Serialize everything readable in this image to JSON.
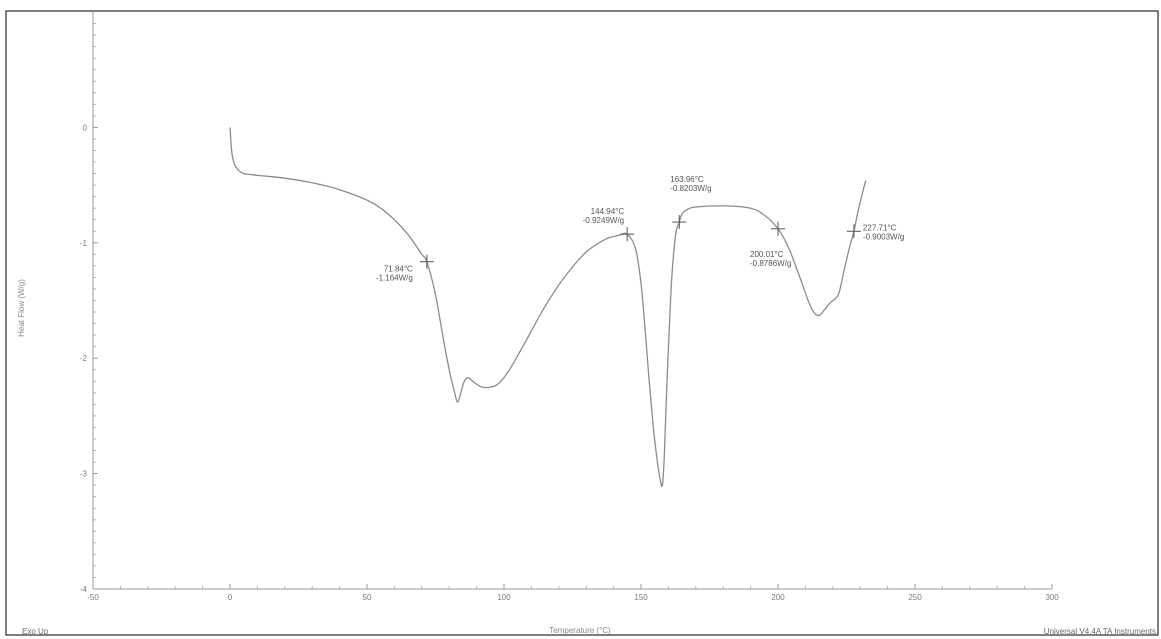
{
  "chart_data": {
    "type": "line",
    "xlabel": "Temperature (°C)",
    "ylabel": "Heat Flow (W/g)",
    "xlim": [
      -50,
      300
    ],
    "ylim": [
      -4,
      1
    ],
    "x_ticks": [
      -50,
      0,
      50,
      100,
      150,
      200,
      250,
      300
    ],
    "y_ticks": [
      -4,
      -3,
      -2,
      -1,
      0
    ],
    "x_tick_labels": [
      "-50",
      "0",
      "50",
      "100",
      "150",
      "200",
      "250",
      "300"
    ],
    "y_tick_labels": [
      "-4",
      "-3",
      "-2",
      "-1",
      "0"
    ],
    "footer_left": "Exo Up",
    "footer_right": "Universal V4.4A TA Instruments",
    "line_color": "#8c8c8c",
    "series": [
      {
        "x": [
          0,
          0.6,
          1.5,
          3,
          5,
          8,
          12,
          20,
          30,
          40,
          50,
          55,
          60,
          65,
          70,
          71.84,
          75,
          78,
          80,
          82,
          83,
          84,
          85.5,
          87,
          89,
          92,
          95,
          98,
          102,
          108,
          115,
          122,
          130,
          137,
          142,
          144.94,
          148,
          150,
          151.5,
          153,
          154.5,
          156,
          157,
          157.8,
          158.5,
          159.5,
          161,
          162.5,
          163.96,
          165,
          167,
          170,
          180,
          190,
          195,
          200.01,
          204,
          208,
          211,
          213,
          215,
          217,
          219,
          222,
          224,
          226,
          227.71,
          229,
          230.5,
          232
        ],
        "y": [
          0,
          -0.2,
          -0.31,
          -0.37,
          -0.4,
          -0.41,
          -0.42,
          -0.44,
          -0.48,
          -0.54,
          -0.63,
          -0.7,
          -0.8,
          -0.93,
          -1.1,
          -1.164,
          -1.45,
          -1.85,
          -2.1,
          -2.3,
          -2.38,
          -2.32,
          -2.2,
          -2.17,
          -2.21,
          -2.25,
          -2.25,
          -2.22,
          -2.1,
          -1.85,
          -1.55,
          -1.3,
          -1.08,
          -0.97,
          -0.935,
          -0.9249,
          -1.05,
          -1.35,
          -1.75,
          -2.2,
          -2.6,
          -2.9,
          -3.05,
          -3.1,
          -2.85,
          -2.2,
          -1.4,
          -0.95,
          -0.8203,
          -0.75,
          -0.71,
          -0.69,
          -0.68,
          -0.7,
          -0.76,
          -0.8786,
          -1.05,
          -1.3,
          -1.5,
          -1.6,
          -1.63,
          -1.58,
          -1.52,
          -1.45,
          -1.25,
          -1.05,
          -0.9003,
          -0.75,
          -0.6,
          -0.46
        ]
      }
    ],
    "annotations": [
      {
        "x": 71.84,
        "y": -1.164,
        "temp_label": "71.84°C",
        "flow_label": "-1.164W/g",
        "label_side": "left-below"
      },
      {
        "x": 144.94,
        "y": -0.9249,
        "temp_label": "144.94°C",
        "flow_label": "-0.9249W/g",
        "label_side": "left-above"
      },
      {
        "x": 163.96,
        "y": -0.8203,
        "temp_label": "163.96°C",
        "flow_label": "-0.8203W/g",
        "label_side": "above"
      },
      {
        "x": 200.01,
        "y": -0.8786,
        "temp_label": "200.01°C",
        "flow_label": "-0.8786W/g",
        "label_side": "below"
      },
      {
        "x": 227.71,
        "y": -0.9003,
        "temp_label": "227.71°C",
        "flow_label": "-0.9003W/g",
        "label_side": "right"
      }
    ]
  }
}
